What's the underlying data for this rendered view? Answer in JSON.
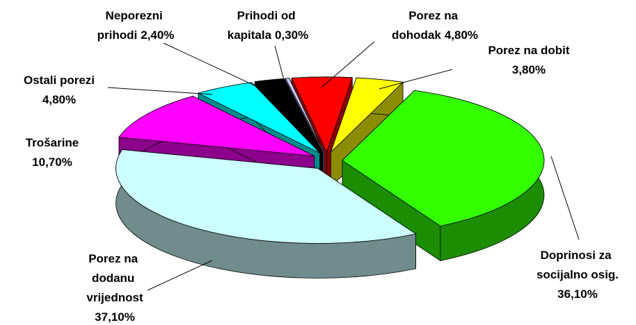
{
  "chart_data": {
    "type": "pie3d",
    "categories": [
      "Porez na dohodak",
      "Porez na dobit",
      "Doprinosi za socijalno osig.",
      "Porez na dodanu vrijednost",
      "Trošarine",
      "Ostali porezi",
      "Neporezni prihodi",
      "Prihodi od kapitala"
    ],
    "values": [
      4.8,
      3.8,
      36.1,
      37.1,
      10.7,
      4.8,
      2.4,
      0.3
    ],
    "value_labels": [
      "4,80%",
      "3,80%",
      "36,10%",
      "37,10%",
      "10,70%",
      "4,80%",
      "2,40%",
      "0,30%"
    ],
    "colors": [
      "#ff0000",
      "#ffff00",
      "#33ff00",
      "#ccffff",
      "#ff00ff",
      "#00ffff",
      "#000000",
      "#ccccff"
    ]
  }
}
